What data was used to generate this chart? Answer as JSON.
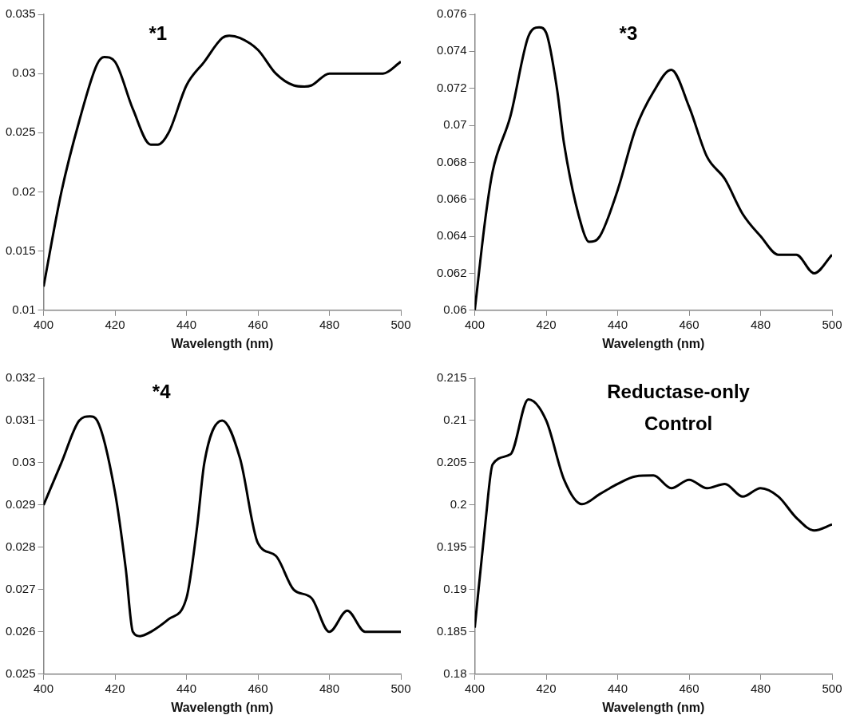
{
  "chart_data": [
    {
      "type": "line",
      "title": "*1",
      "xlabel": "Wavelength (nm)",
      "x": [
        400,
        405,
        410,
        415,
        417,
        420,
        425,
        430,
        432,
        435,
        440,
        445,
        450,
        452,
        455,
        460,
        465,
        470,
        473,
        475,
        480,
        485,
        490,
        495,
        500
      ],
      "series": [
        {
          "color": "#000000",
          "values": [
            0.012,
            0.02,
            0.026,
            0.0308,
            0.0314,
            0.031,
            0.027,
            0.024,
            0.024,
            0.025,
            0.029,
            0.031,
            0.033,
            0.0332,
            0.033,
            0.032,
            0.03,
            0.029,
            0.0289,
            0.029,
            0.03,
            0.03,
            0.03,
            0.03,
            0.031
          ]
        }
      ],
      "xlim": [
        400,
        500
      ],
      "xticks": [
        400,
        420,
        440,
        460,
        480,
        500
      ],
      "ylim": [
        0.01,
        0.035
      ],
      "yticks": [
        0.01,
        0.015,
        0.02,
        0.025,
        0.03,
        0.035
      ],
      "grid": false,
      "legend": false,
      "marker": "none"
    },
    {
      "type": "line",
      "title": "*3",
      "xlabel": "Wavelength (nm)",
      "x": [
        400,
        403,
        405,
        410,
        415,
        418,
        420,
        423,
        425,
        430,
        432,
        435,
        440,
        445,
        450,
        455,
        460,
        465,
        470,
        475,
        480,
        485,
        490,
        495,
        500
      ],
      "series": [
        {
          "color": "#000000",
          "values": [
            0.06,
            0.065,
            0.0675,
            0.0705,
            0.0748,
            0.0753,
            0.075,
            0.072,
            0.069,
            0.0645,
            0.0637,
            0.064,
            0.0665,
            0.0698,
            0.0718,
            0.073,
            0.071,
            0.0683,
            0.0671,
            0.0652,
            0.064,
            0.063,
            0.063,
            0.062,
            0.063
          ]
        }
      ],
      "xlim": [
        400,
        500
      ],
      "xticks": [
        400,
        420,
        440,
        460,
        480,
        500
      ],
      "ylim": [
        0.06,
        0.076
      ],
      "yticks": [
        0.06,
        0.062,
        0.064,
        0.066,
        0.068,
        0.07,
        0.072,
        0.074,
        0.076
      ],
      "grid": false,
      "legend": false,
      "marker": "none"
    },
    {
      "type": "line",
      "title": "*4",
      "xlabel": "Wavelength (nm)",
      "x": [
        400,
        405,
        410,
        413,
        415,
        420,
        423,
        425,
        427,
        430,
        435,
        440,
        443,
        445,
        450,
        455,
        460,
        465,
        470,
        475,
        480,
        485,
        490,
        495,
        500
      ],
      "series": [
        {
          "color": "#000000",
          "values": [
            0.029,
            0.03,
            0.031,
            0.0311,
            0.031,
            0.0293,
            0.0275,
            0.026,
            0.0259,
            0.026,
            0.0263,
            0.0268,
            0.0285,
            0.03,
            0.031,
            0.0301,
            0.0281,
            0.0278,
            0.027,
            0.0268,
            0.026,
            0.0265,
            0.026,
            0.026,
            0.026
          ]
        }
      ],
      "xlim": [
        400,
        500
      ],
      "xticks": [
        400,
        420,
        440,
        460,
        480,
        500
      ],
      "ylim": [
        0.025,
        0.032
      ],
      "yticks": [
        0.025,
        0.026,
        0.027,
        0.028,
        0.029,
        0.03,
        0.031,
        0.032
      ],
      "grid": false,
      "legend": false,
      "marker": "none"
    },
    {
      "type": "line",
      "title": "Reductase-only Control",
      "xlabel": "Wavelength (nm)",
      "x": [
        400,
        403,
        405,
        410,
        415,
        420,
        425,
        430,
        435,
        440,
        445,
        450,
        455,
        460,
        465,
        470,
        475,
        480,
        485,
        490,
        495,
        500
      ],
      "series": [
        {
          "color": "#000000",
          "values": [
            0.1855,
            0.198,
            0.2048,
            0.206,
            0.2125,
            0.21,
            0.203,
            0.2001,
            0.2013,
            0.2025,
            0.2034,
            0.2035,
            0.202,
            0.203,
            0.202,
            0.2025,
            0.201,
            0.202,
            0.201,
            0.1985,
            0.197,
            0.1977
          ]
        }
      ],
      "xlim": [
        400,
        500
      ],
      "xticks": [
        400,
        420,
        440,
        460,
        480,
        500
      ],
      "ylim": [
        0.18,
        0.215
      ],
      "yticks": [
        0.18,
        0.185,
        0.19,
        0.195,
        0.2,
        0.205,
        0.21,
        0.215
      ],
      "grid": false,
      "legend": false,
      "marker": "none"
    }
  ]
}
